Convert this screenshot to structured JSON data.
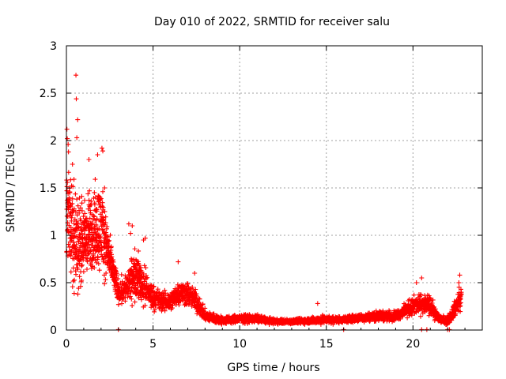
{
  "chart_data": {
    "type": "scatter",
    "title": "Day 010 of 2022, SRMTID for receiver salu",
    "xlabel": "GPS time / hours",
    "ylabel": "SRMTID / TECUs",
    "xlim": [
      0,
      24
    ],
    "ylim": [
      0,
      3
    ],
    "xticks": [
      0,
      5,
      10,
      15,
      20
    ],
    "xtick_labels": [
      "0",
      "5",
      "10",
      "15",
      "20"
    ],
    "yticks": [
      0,
      0.5,
      1,
      1.5,
      2,
      2.5,
      3
    ],
    "ytick_labels": [
      "0",
      "0.5",
      "1",
      "1.5",
      "2",
      "2.5",
      "3"
    ],
    "grid": true,
    "marker": "plus",
    "color": "#ff0000",
    "series": [
      {
        "name": "SRMTID",
        "profile": [
          {
            "x": 0.0,
            "y": 1.3,
            "spread": 0.6
          },
          {
            "x": 0.5,
            "y": 0.9,
            "spread": 0.6
          },
          {
            "x": 1.0,
            "y": 0.95,
            "spread": 0.5
          },
          {
            "x": 1.5,
            "y": 1.05,
            "spread": 0.5
          },
          {
            "x": 2.0,
            "y": 1.1,
            "spread": 0.55
          },
          {
            "x": 2.5,
            "y": 0.75,
            "spread": 0.25
          },
          {
            "x": 3.0,
            "y": 0.4,
            "spread": 0.15
          },
          {
            "x": 3.5,
            "y": 0.45,
            "spread": 0.2
          },
          {
            "x": 4.0,
            "y": 0.6,
            "spread": 0.3
          },
          {
            "x": 4.5,
            "y": 0.45,
            "spread": 0.25
          },
          {
            "x": 5.0,
            "y": 0.35,
            "spread": 0.15
          },
          {
            "x": 5.5,
            "y": 0.3,
            "spread": 0.12
          },
          {
            "x": 6.0,
            "y": 0.3,
            "spread": 0.12
          },
          {
            "x": 6.5,
            "y": 0.4,
            "spread": 0.15
          },
          {
            "x": 7.0,
            "y": 0.38,
            "spread": 0.15
          },
          {
            "x": 7.5,
            "y": 0.3,
            "spread": 0.13
          },
          {
            "x": 8.0,
            "y": 0.15,
            "spread": 0.07
          },
          {
            "x": 9.0,
            "y": 0.1,
            "spread": 0.05
          },
          {
            "x": 10.0,
            "y": 0.12,
            "spread": 0.05
          },
          {
            "x": 11.0,
            "y": 0.12,
            "spread": 0.05
          },
          {
            "x": 12.0,
            "y": 0.09,
            "spread": 0.03
          },
          {
            "x": 13.0,
            "y": 0.09,
            "spread": 0.03
          },
          {
            "x": 14.0,
            "y": 0.1,
            "spread": 0.04
          },
          {
            "x": 15.0,
            "y": 0.11,
            "spread": 0.05
          },
          {
            "x": 16.0,
            "y": 0.11,
            "spread": 0.04
          },
          {
            "x": 17.0,
            "y": 0.13,
            "spread": 0.05
          },
          {
            "x": 18.0,
            "y": 0.15,
            "spread": 0.06
          },
          {
            "x": 19.0,
            "y": 0.15,
            "spread": 0.06
          },
          {
            "x": 19.5,
            "y": 0.2,
            "spread": 0.08
          },
          {
            "x": 20.0,
            "y": 0.25,
            "spread": 0.12
          },
          {
            "x": 20.5,
            "y": 0.28,
            "spread": 0.12
          },
          {
            "x": 21.0,
            "y": 0.25,
            "spread": 0.12
          },
          {
            "x": 21.5,
            "y": 0.12,
            "spread": 0.05
          },
          {
            "x": 22.0,
            "y": 0.1,
            "spread": 0.05
          },
          {
            "x": 22.5,
            "y": 0.25,
            "spread": 0.12
          },
          {
            "x": 22.8,
            "y": 0.35,
            "spread": 0.15
          }
        ],
        "highlights": [
          {
            "x": 0.03,
            "y": 2.12
          },
          {
            "x": 0.05,
            "y": 2.02
          },
          {
            "x": 0.1,
            "y": 1.96
          },
          {
            "x": 0.12,
            "y": 1.88
          },
          {
            "x": 0.2,
            "y": 1.45
          },
          {
            "x": 0.35,
            "y": 1.75
          },
          {
            "x": 0.55,
            "y": 2.69
          },
          {
            "x": 0.57,
            "y": 2.44
          },
          {
            "x": 0.65,
            "y": 2.22
          },
          {
            "x": 0.6,
            "y": 2.03
          },
          {
            "x": 1.3,
            "y": 1.8
          },
          {
            "x": 1.8,
            "y": 1.85
          },
          {
            "x": 2.05,
            "y": 1.92
          },
          {
            "x": 2.1,
            "y": 1.89
          },
          {
            "x": 2.2,
            "y": 1.5
          },
          {
            "x": 3.6,
            "y": 1.12
          },
          {
            "x": 3.7,
            "y": 1.02
          },
          {
            "x": 3.8,
            "y": 1.1
          },
          {
            "x": 4.55,
            "y": 0.97
          },
          {
            "x": 4.45,
            "y": 0.95
          },
          {
            "x": 6.45,
            "y": 0.72
          },
          {
            "x": 7.4,
            "y": 0.6
          },
          {
            "x": 14.5,
            "y": 0.28
          },
          {
            "x": 20.5,
            "y": 0.55
          },
          {
            "x": 20.2,
            "y": 0.5
          },
          {
            "x": 22.7,
            "y": 0.58
          },
          {
            "x": 22.65,
            "y": 0.5
          }
        ],
        "zeros": [
          3.0,
          16.0,
          20.5,
          20.8,
          22.0,
          22.1
        ]
      }
    ]
  }
}
